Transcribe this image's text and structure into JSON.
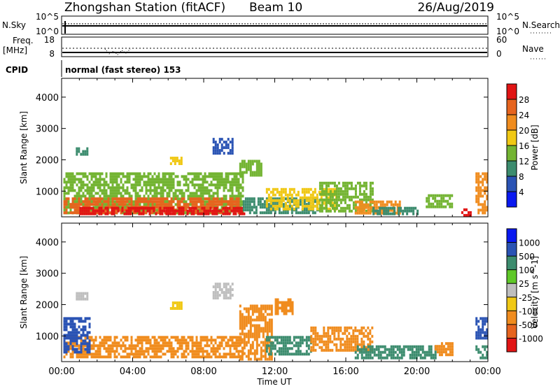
{
  "header": {
    "station": "Zhongshan Station (fitACF)",
    "beam": "Beam 10",
    "date": "26/Aug/2019",
    "cpid_label": "CPID",
    "cpid_text": "normal (fast stereo) 153"
  },
  "mini_panels": {
    "nsky_label": "N.Sky",
    "nsky_ticks": [
      "10^5",
      "10^0"
    ],
    "nsearch_label": "N.Search",
    "nsearch_ticks": [
      "10^5",
      "10^0"
    ],
    "freq_label_1": "Freq.",
    "freq_label_2": "[MHz]",
    "freq_ticks": [
      "18",
      "8"
    ],
    "nave_label": "Nave",
    "nave_ticks": [
      "60",
      "0"
    ]
  },
  "colors": {
    "power": [
      "#0a19f0",
      "#2a53b4",
      "#3c8c6e",
      "#73b432",
      "#f0c814",
      "#f08c1e",
      "#e6641e",
      "#e11414"
    ],
    "velocity": [
      "#e11414",
      "#e6641e",
      "#f08c1e",
      "#f0c814",
      "#bebebe",
      "#5fc828",
      "#3c8c6e",
      "#2a53b4",
      "#0a19f0"
    ]
  },
  "chart_data": [
    {
      "type": "heatmap",
      "panel": "power",
      "ylabel": "Slant Range [km]",
      "yticks": [
        "1000",
        "2000",
        "3000",
        "4000"
      ],
      "ytick_values": [
        1000,
        2000,
        3000,
        4000
      ],
      "ylim": [
        180,
        4600
      ],
      "xlim_hours": [
        0,
        24
      ],
      "colorbar_label": "Power [dB]",
      "colorbar_ticks": [
        "4",
        "8",
        "12",
        "16",
        "20",
        "24",
        "28"
      ],
      "colorbar_range": [
        0,
        32
      ],
      "regions": [
        {
          "t0": 0.1,
          "t1": 10.2,
          "r0": 300,
          "r1": 1600,
          "value": 14
        },
        {
          "t0": 0.1,
          "t1": 10.0,
          "r0": 300,
          "r1": 800,
          "value": 26
        },
        {
          "t0": 1.0,
          "t1": 10.3,
          "r0": 300,
          "r1": 500,
          "value": 30
        },
        {
          "t0": 0.8,
          "t1": 1.4,
          "r0": 2150,
          "r1": 2400,
          "value": 8
        },
        {
          "t0": 8.5,
          "t1": 9.6,
          "r0": 2200,
          "r1": 2700,
          "value": 6
        },
        {
          "t0": 6.1,
          "t1": 6.8,
          "r0": 1850,
          "r1": 2100,
          "value": 18
        },
        {
          "t0": 10.0,
          "t1": 11.2,
          "r0": 1500,
          "r1": 2000,
          "value": 14
        },
        {
          "t0": 10.2,
          "t1": 14.5,
          "r0": 300,
          "r1": 800,
          "value": 9
        },
        {
          "t0": 11.5,
          "t1": 15.5,
          "r0": 400,
          "r1": 1100,
          "value": 18
        },
        {
          "t0": 14.5,
          "t1": 17.5,
          "r0": 400,
          "r1": 1300,
          "value": 13
        },
        {
          "t0": 16.5,
          "t1": 19.0,
          "r0": 300,
          "r1": 700,
          "value": 22
        },
        {
          "t0": 17.5,
          "t1": 20.0,
          "r0": 300,
          "r1": 500,
          "value": 10
        },
        {
          "t0": 20.5,
          "t1": 22.0,
          "r0": 500,
          "r1": 900,
          "value": 14
        },
        {
          "t0": 22.5,
          "t1": 23.0,
          "r0": 250,
          "r1": 450,
          "value": 28
        },
        {
          "t0": 23.3,
          "t1": 24.0,
          "r0": 300,
          "r1": 1600,
          "value": 20
        }
      ]
    },
    {
      "type": "heatmap",
      "panel": "velocity",
      "ylabel": "Slant Range [km]",
      "yticks": [
        "1000",
        "2000",
        "3000",
        "4000"
      ],
      "ytick_values": [
        1000,
        2000,
        3000,
        4000
      ],
      "ylim": [
        180,
        4600
      ],
      "xlim_hours": [
        0,
        24
      ],
      "xticks": [
        "00:00",
        "04:00",
        "08:00",
        "12:00",
        "16:00",
        "20:00",
        "00:00"
      ],
      "xtick_values": [
        0,
        4,
        8,
        12,
        16,
        20,
        24
      ],
      "xlabel": "Time UT",
      "colorbar_label": "Velocity [m s^-1]",
      "colorbar_ticks": [
        "-1000",
        "-500",
        "-100",
        "-25",
        "25",
        "100",
        "500",
        "1000"
      ],
      "regions": [
        {
          "t0": 0.1,
          "t1": 10.2,
          "r0": 300,
          "r1": 1000,
          "value": -100
        },
        {
          "t0": 0.1,
          "t1": 1.6,
          "r0": 500,
          "r1": 1600,
          "value": 800
        },
        {
          "t0": 0.8,
          "t1": 1.4,
          "r0": 2150,
          "r1": 2400,
          "value": 25
        },
        {
          "t0": 8.5,
          "t1": 9.6,
          "r0": 2200,
          "r1": 2700,
          "value": 25
        },
        {
          "t0": 6.1,
          "t1": 6.8,
          "r0": 1850,
          "r1": 2100,
          "value": -25
        },
        {
          "t0": 10.0,
          "t1": 11.8,
          "r0": 300,
          "r1": 2000,
          "value": -300
        },
        {
          "t0": 12.0,
          "t1": 13.0,
          "r0": 1700,
          "r1": 2200,
          "value": -300
        },
        {
          "t0": 11.5,
          "t1": 14.0,
          "r0": 400,
          "r1": 1000,
          "value": 150
        },
        {
          "t0": 14.0,
          "t1": 17.5,
          "r0": 500,
          "r1": 1300,
          "value": -300
        },
        {
          "t0": 16.5,
          "t1": 21.0,
          "r0": 300,
          "r1": 700,
          "value": 150
        },
        {
          "t0": 21.0,
          "t1": 22.0,
          "r0": 400,
          "r1": 800,
          "value": -100
        },
        {
          "t0": 23.3,
          "t1": 24.0,
          "r0": 900,
          "r1": 1600,
          "value": 800
        },
        {
          "t0": 23.3,
          "t1": 24.0,
          "r0": 300,
          "r1": 700,
          "value": 150
        }
      ]
    }
  ]
}
